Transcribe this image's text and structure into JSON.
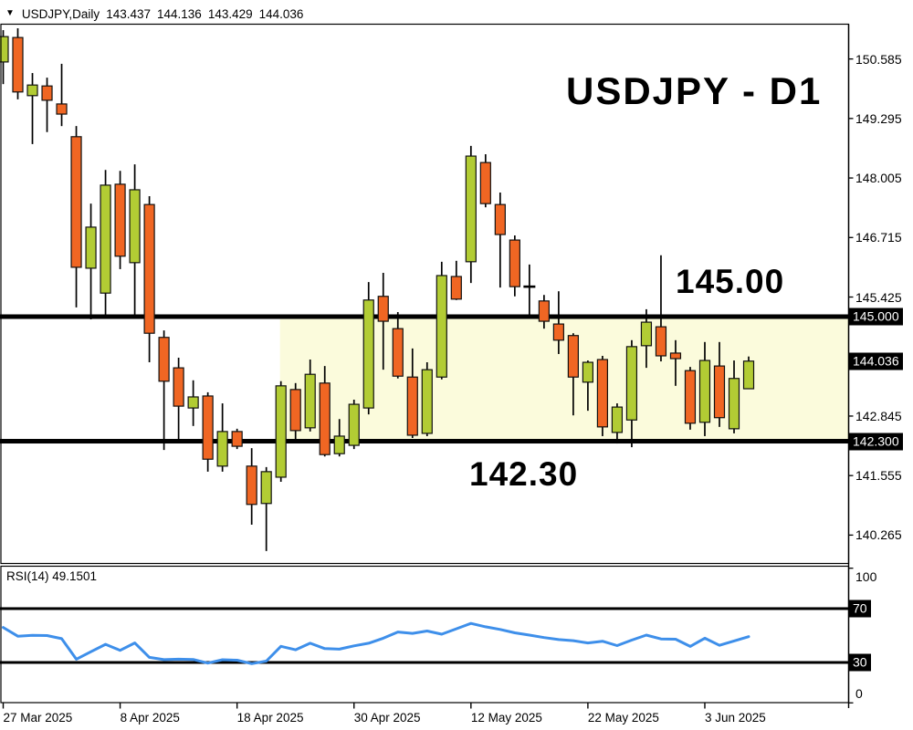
{
  "header": {
    "dropdown_icon": "▼",
    "symbol_period": "USDJPY,Daily",
    "open": "143.437",
    "high": "144.136",
    "low": "143.429",
    "close": "144.036"
  },
  "annotations": {
    "title": "USDJPY - D1",
    "resistance_label": "145.00",
    "support_label": "142.30"
  },
  "price_axis": {
    "ticks": [
      {
        "label": "150.585",
        "value": 150.585
      },
      {
        "label": "149.295",
        "value": 149.295
      },
      {
        "label": "148.005",
        "value": 148.005
      },
      {
        "label": "146.715",
        "value": 146.715
      },
      {
        "label": "145.425",
        "value": 145.425
      },
      {
        "label": "142.845",
        "value": 142.845
      },
      {
        "label": "141.555",
        "value": 141.555
      },
      {
        "label": "140.265",
        "value": 140.265
      }
    ],
    "badges": [
      {
        "label": "145.000",
        "value": 145.0
      },
      {
        "label": "144.036",
        "value": 144.036
      },
      {
        "label": "142.300",
        "value": 142.3
      }
    ]
  },
  "rsi_axis": {
    "ticks": [
      {
        "label": "100",
        "value": 100,
        "badge": false
      },
      {
        "label": "70",
        "value": 70,
        "badge": true
      },
      {
        "label": "30",
        "value": 30,
        "badge": true
      },
      {
        "label": "0",
        "value": 0,
        "badge": false
      }
    ]
  },
  "x_axis": {
    "ticks": [
      {
        "label": "27 Mar 2025",
        "index": 0
      },
      {
        "label": "8 Apr 2025",
        "index": 8
      },
      {
        "label": "18 Apr 2025",
        "index": 16
      },
      {
        "label": "30 Apr 2025",
        "index": 24
      },
      {
        "label": "12 May 2025",
        "index": 32
      },
      {
        "label": "22 May 2025",
        "index": 40
      },
      {
        "label": "3 Jun 2025",
        "index": 48
      }
    ]
  },
  "colors": {
    "bull": "#B2CC34",
    "bear": "#F06623",
    "wick": "#000000",
    "candle_border": "#111111",
    "rsi_line": "#3E8FEA",
    "zone_fill": "#FBFBDC",
    "level_line": "#000000",
    "badge_bg": "#000000",
    "badge_text": "#FFFFFF"
  },
  "chart_data": {
    "type": "candlestick",
    "symbol": "USDJPY",
    "timeframe": "Daily",
    "title": "USDJPY - D1",
    "ylim": [
      139.66,
      151.35
    ],
    "rsi_ylim": [
      0,
      100
    ],
    "horizontal_levels": [
      145.0,
      142.3
    ],
    "zone": {
      "price_top": 145.0,
      "price_bottom": 142.3,
      "start_index": 19,
      "extends_to_right_edge": true
    },
    "candles": [
      [
        "2025-03-27",
        150.52,
        151.21,
        150.04,
        151.07
      ],
      [
        "2025-03-28",
        151.05,
        151.25,
        149.71,
        149.87
      ],
      [
        "2025-03-31",
        149.79,
        150.28,
        148.74,
        150.02
      ],
      [
        "2025-04-01",
        150.0,
        150.18,
        149.0,
        149.69
      ],
      [
        "2025-04-02",
        149.61,
        150.48,
        149.13,
        149.39
      ],
      [
        "2025-04-03",
        148.9,
        149.13,
        145.2,
        146.07
      ],
      [
        "2025-04-04",
        146.05,
        147.45,
        144.94,
        146.94
      ],
      [
        "2025-04-07",
        145.51,
        148.18,
        145.04,
        147.85
      ],
      [
        "2025-04-08",
        147.87,
        148.16,
        146.03,
        146.31
      ],
      [
        "2025-04-09",
        146.17,
        148.3,
        145.0,
        147.75
      ],
      [
        "2025-04-10",
        147.43,
        147.61,
        144.01,
        144.64
      ],
      [
        "2025-04-11",
        144.55,
        144.7,
        142.11,
        143.6
      ],
      [
        "2025-04-14",
        143.89,
        144.11,
        142.33,
        143.06
      ],
      [
        "2025-04-15",
        143.02,
        143.62,
        142.63,
        143.26
      ],
      [
        "2025-04-16",
        143.28,
        143.36,
        141.64,
        141.91
      ],
      [
        "2025-04-17",
        141.76,
        143.12,
        141.64,
        142.51
      ],
      [
        "2025-04-18",
        142.51,
        142.57,
        142.13,
        142.19
      ],
      [
        "2025-04-21",
        141.76,
        142.15,
        140.49,
        140.93
      ],
      [
        "2025-04-22",
        140.95,
        141.74,
        139.92,
        141.64
      ],
      [
        "2025-04-23",
        141.52,
        143.6,
        141.42,
        143.5
      ],
      [
        "2025-04-24",
        143.42,
        143.56,
        142.33,
        142.53
      ],
      [
        "2025-04-25",
        142.59,
        144.07,
        142.51,
        143.75
      ],
      [
        "2025-04-28",
        143.56,
        143.93,
        141.97,
        142.01
      ],
      [
        "2025-04-29",
        142.03,
        142.78,
        141.97,
        142.41
      ],
      [
        "2025-04-30",
        142.21,
        143.2,
        142.13,
        143.1
      ],
      [
        "2025-05-01",
        143.02,
        145.75,
        142.88,
        145.36
      ],
      [
        "2025-05-02",
        145.44,
        145.95,
        143.85,
        144.9
      ],
      [
        "2025-05-05",
        144.74,
        145.1,
        143.66,
        143.71
      ],
      [
        "2025-05-06",
        143.69,
        144.31,
        142.37,
        142.43
      ],
      [
        "2025-05-07",
        142.47,
        144.01,
        142.41,
        143.85
      ],
      [
        "2025-05-08",
        143.69,
        146.19,
        143.64,
        145.89
      ],
      [
        "2025-05-09",
        145.87,
        146.21,
        145.36,
        145.38
      ],
      [
        "2025-05-12",
        146.19,
        148.7,
        145.73,
        148.48
      ],
      [
        "2025-05-13",
        148.34,
        148.52,
        147.37,
        147.45
      ],
      [
        "2025-05-14",
        147.43,
        147.69,
        145.63,
        146.78
      ],
      [
        "2025-05-15",
        146.66,
        146.76,
        145.44,
        145.65
      ],
      [
        "2025-05-16",
        145.65,
        146.13,
        144.98,
        145.65
      ],
      [
        "2025-05-19",
        145.34,
        145.47,
        144.74,
        144.9
      ],
      [
        "2025-05-20",
        144.84,
        145.55,
        144.19,
        144.49
      ],
      [
        "2025-05-21",
        144.59,
        144.64,
        142.86,
        143.69
      ],
      [
        "2025-05-22",
        143.58,
        144.05,
        142.96,
        144.01
      ],
      [
        "2025-05-23",
        144.07,
        144.15,
        142.41,
        142.61
      ],
      [
        "2025-05-26",
        142.49,
        143.12,
        142.25,
        143.04
      ],
      [
        "2025-05-27",
        142.76,
        144.49,
        142.17,
        144.35
      ],
      [
        "2025-05-28",
        144.37,
        145.16,
        143.89,
        144.88
      ],
      [
        "2025-05-29",
        144.78,
        146.33,
        144.03,
        144.15
      ],
      [
        "2025-05-30",
        144.21,
        144.49,
        143.5,
        144.09
      ],
      [
        "2025-06-02",
        143.83,
        143.91,
        142.55,
        142.69
      ],
      [
        "2025-06-03",
        142.71,
        144.45,
        142.41,
        144.05
      ],
      [
        "2025-06-04",
        143.93,
        144.45,
        142.61,
        142.81
      ],
      [
        "2025-06-05",
        142.57,
        144.05,
        142.47,
        143.66
      ],
      [
        "2025-06-06",
        143.437,
        144.136,
        143.429,
        144.036
      ]
    ],
    "rsi": {
      "label": "RSI(14) 49.1501",
      "period": 14,
      "current": 49.1501,
      "levels": [
        70,
        30
      ],
      "values": [
        56.0,
        49.5,
        50.2,
        50.0,
        47.7,
        32.4,
        38.0,
        43.5,
        39.0,
        44.5,
        33.8,
        32.1,
        32.4,
        32.2,
        29.5,
        32.0,
        31.7,
        29.1,
        31.0,
        42.0,
        39.4,
        44.3,
        40.3,
        39.9,
        42.3,
        44.3,
        48.0,
        52.6,
        51.6,
        53.4,
        51.0,
        55.0,
        59.0,
        56.5,
        54.5,
        52.0,
        50.3,
        48.5,
        47.0,
        46.2,
        44.5,
        45.8,
        42.5,
        46.6,
        50.3,
        47.5,
        47.3,
        41.9,
        48.0,
        42.7,
        46.0,
        49.15
      ]
    }
  }
}
